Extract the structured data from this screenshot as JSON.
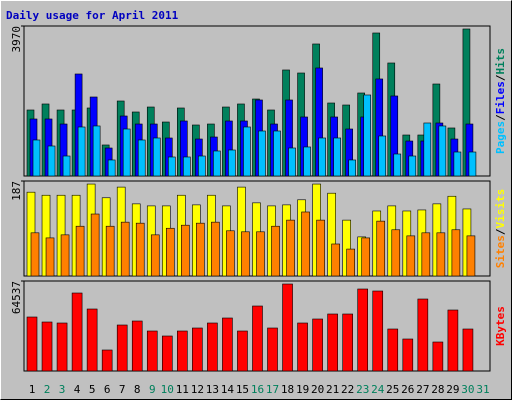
{
  "chart_data": [
    {
      "type": "bar",
      "title": "Daily usage for April 2011",
      "legend_separator": "/",
      "ylim": [
        0,
        3970
      ],
      "yticks": [
        3970
      ],
      "series": [
        {
          "name": "Hits",
          "color": "#00805c",
          "values": [
            1747,
            1906,
            1747,
            1747,
            1800,
            821,
            1985,
            1694,
            1826,
            1429,
            1800,
            1350,
            1376,
            1826,
            1906,
            2038,
            1747,
            2806,
            2726,
            3494,
            1932,
            1879,
            2197,
            3785,
            2991,
            1085,
            1085,
            2435,
            1271,
            3891,
            null
          ]
        },
        {
          "name": "Files",
          "color": "#0000ff",
          "values": [
            1509,
            1509,
            1376,
            2700,
            2091,
            741,
            1588,
            1376,
            1376,
            1006,
            1456,
            979,
            1032,
            1456,
            1456,
            2012,
            1376,
            2012,
            1562,
            2859,
            1562,
            1244,
            1562,
            2568,
            2118,
            926,
            926,
            1403,
            979,
            1376,
            null
          ]
        },
        {
          "name": "Pages",
          "color": "#00c0ff",
          "values": [
            953,
            794,
            529,
            1297,
            1324,
            424,
            1244,
            953,
            1006,
            503,
            503,
            529,
            662,
            688,
            1297,
            1191,
            1191,
            741,
            768,
            1006,
            1006,
            424,
            2144,
            1059,
            582,
            529,
            1403,
            1324,
            635,
            635,
            null
          ]
        }
      ]
    },
    {
      "type": "bar",
      "legend_separator": "/",
      "ylim": [
        0,
        187
      ],
      "yticks": [
        187
      ],
      "series": [
        {
          "name": "Visits",
          "color": "#ffff00",
          "values": [
            165,
            159,
            159,
            159,
            181,
            154,
            175,
            142,
            138,
            138,
            159,
            140,
            159,
            138,
            175,
            144,
            138,
            140,
            150,
            181,
            163,
            110,
            77,
            128,
            138,
            128,
            130,
            142,
            157,
            132,
            null
          ]
        },
        {
          "name": "Sites",
          "color": "#ff8000",
          "values": [
            85,
            75,
            81,
            98,
            122,
            98,
            106,
            104,
            81,
            94,
            100,
            104,
            106,
            89,
            87,
            87,
            98,
            110,
            126,
            110,
            63,
            53,
            75,
            108,
            91,
            79,
            85,
            85,
            91,
            79,
            null
          ]
        }
      ]
    },
    {
      "type": "bar",
      "ylim": [
        0,
        64537
      ],
      "yticks": [
        64537
      ],
      "categories": [
        "1",
        "2",
        "3",
        "4",
        "5",
        "6",
        "7",
        "8",
        "9",
        "10",
        "11",
        "12",
        "13",
        "14",
        "15",
        "16",
        "17",
        "18",
        "19",
        "20",
        "21",
        "22",
        "23",
        "24",
        "25",
        "26",
        "27",
        "28",
        "29",
        "30",
        "31"
      ],
      "category_colors": [
        "#000000",
        "#00805c",
        "#00805c",
        "#000000",
        "#000000",
        "#000000",
        "#000000",
        "#000000",
        "#00805c",
        "#00805c",
        "#000000",
        "#000000",
        "#000000",
        "#000000",
        "#000000",
        "#00805c",
        "#00805c",
        "#000000",
        "#000000",
        "#000000",
        "#000000",
        "#000000",
        "#00805c",
        "#00805c",
        "#000000",
        "#000000",
        "#000000",
        "#000000",
        "#000000",
        "#00805c",
        "#00805c"
      ],
      "series": [
        {
          "name": "KBytes",
          "color": "#ff0000",
          "values": [
            38718,
            35133,
            34416,
            55926,
            44454,
            15057,
            32982,
            35850,
            28680,
            25095,
            28680,
            30831,
            34416,
            38001,
            28680,
            46605,
            30831,
            62379,
            34416,
            37284,
            40869,
            40869,
            58794,
            57360,
            30114,
            22944,
            51624,
            20793,
            43737,
            30114,
            null
          ]
        }
      ]
    }
  ]
}
